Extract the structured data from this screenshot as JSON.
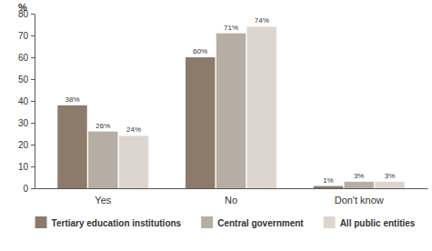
{
  "chart_data": {
    "type": "bar",
    "ylabel": "%",
    "categories": [
      "Yes",
      "No",
      "Don't know"
    ],
    "series": [
      {
        "name": "Tertiary education institutions",
        "color": "#8c7b6b",
        "values": [
          38,
          60,
          1
        ],
        "value_labels": [
          "38%",
          "60%",
          "1%"
        ]
      },
      {
        "name": "Central government",
        "color": "#b6aea3",
        "values": [
          26,
          71,
          3
        ],
        "value_labels": [
          "26%",
          "71%",
          "3%"
        ]
      },
      {
        "name": "All public entities",
        "color": "#ddd6cf",
        "values": [
          24,
          74,
          3
        ],
        "value_labels": [
          "24%",
          "74%",
          "3%"
        ]
      }
    ],
    "ylim": [
      0,
      80
    ],
    "yticks": [
      0,
      10,
      20,
      30,
      40,
      50,
      60,
      70,
      80
    ],
    "grid": false,
    "data_labels": true,
    "legend": "bottom"
  }
}
